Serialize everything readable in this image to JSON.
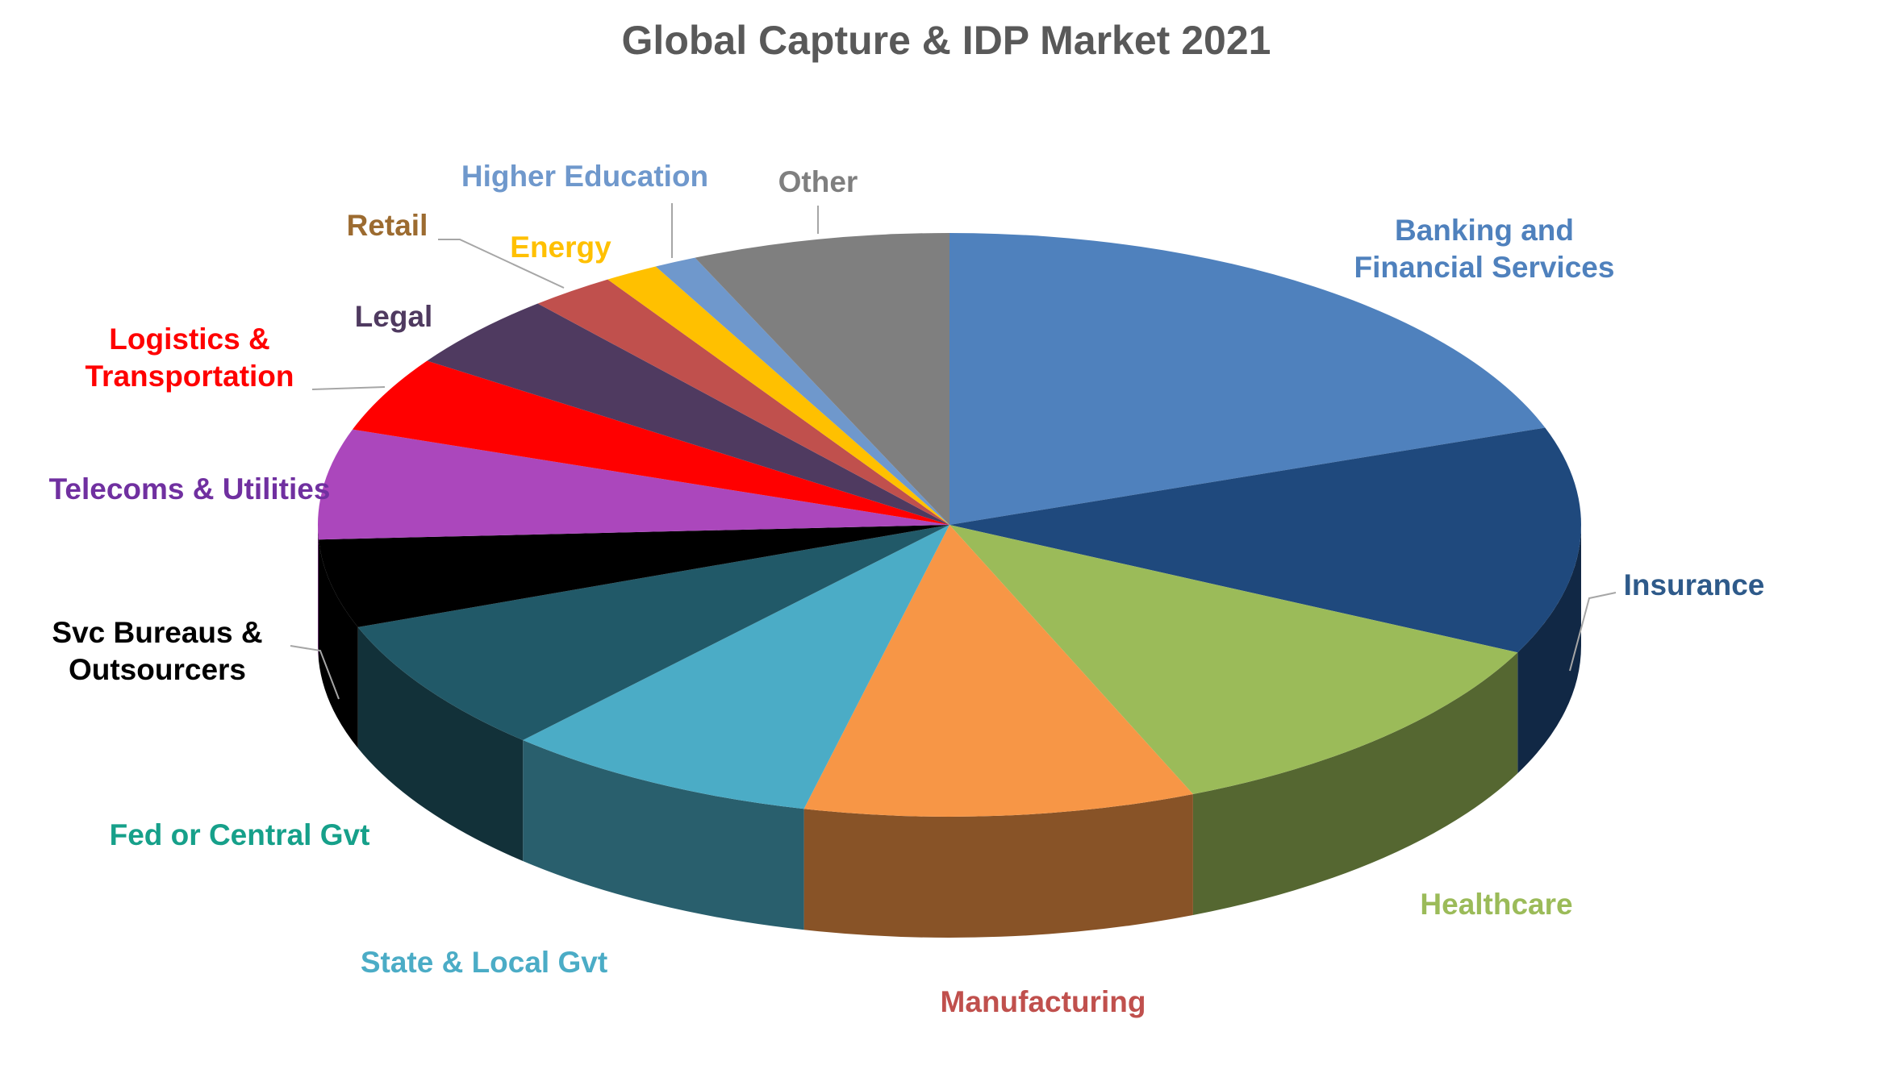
{
  "chart_data": {
    "type": "pie3d",
    "title": "Global Capture & IDP Market 2021",
    "categories": [
      "Banking and\nFinancial Services",
      "Insurance",
      "Healthcare",
      "Manufacturing",
      "State & Local Gvt",
      "Fed or Central Gvt",
      "Svc Bureaus &\nOutsourcers",
      "Telecoms & Utilities",
      "Logistics &\nTransportation",
      "Legal",
      "Retail",
      "Energy",
      "Higher Education",
      "Other"
    ],
    "values": [
      19.6,
      12.6,
      11.5,
      10,
      8.1,
      7.5,
      4.9,
      6.1,
      4.2,
      4.2,
      2.2,
      1.4,
      1.1,
      6.6
    ],
    "colors": [
      "#4f81bd",
      "#1f497d",
      "#9bbb59",
      "#f79646",
      "#4bacc6",
      "#215968",
      "#000000",
      "#ab47bc",
      "#ff0000",
      "#4f3a60",
      "#c0504d",
      "#ffc000",
      "#6f98cc",
      "#7f7f7f"
    ],
    "label_colors": [
      "#4f81bd",
      "#2e5a8a",
      "#9bbb59",
      "#c0504d",
      "#4bacc6",
      "#16a08a",
      "#000000",
      "#7030a0",
      "#ff0000",
      "#4f3a60",
      "#9c6b30",
      "#ffc000",
      "#6f98cc",
      "#7f7f7f"
    ]
  }
}
